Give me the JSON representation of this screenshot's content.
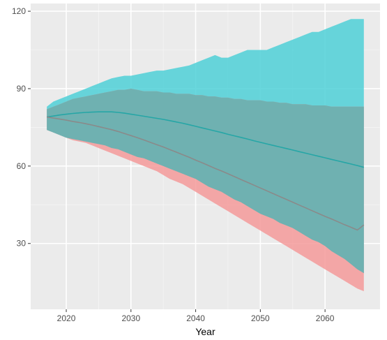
{
  "chart_data": {
    "type": "area",
    "title": "",
    "xlabel": "Year",
    "ylabel": "",
    "xlim": [
      2014.5,
      2068.5
    ],
    "ylim": [
      4.5,
      123
    ],
    "x_ticks": [
      2020,
      2030,
      2040,
      2050,
      2060
    ],
    "y_ticks": [
      30,
      60,
      90,
      120
    ],
    "grid": true,
    "legend": "none",
    "colors": {
      "panel_bg": "#ebebeb",
      "grid_major": "#ffffff",
      "grid_minor": "#f5f5f5",
      "series_a_fill": "#4fd0d7",
      "series_a_line": "#26a6a6",
      "series_b_fill": "#f59a9a",
      "series_b_line": "#8a8a8a",
      "overlap_fill": "#6fb1b1"
    },
    "series": [
      {
        "x": [
          2017,
          2018,
          2019,
          2020,
          2021,
          2022,
          2023,
          2024,
          2025,
          2026,
          2027,
          2028,
          2029,
          2030,
          2031,
          2032,
          2033,
          2034,
          2035,
          2036,
          2037,
          2038,
          2039,
          2040,
          2041,
          2042,
          2043,
          2044,
          2045,
          2046,
          2047,
          2048,
          2049,
          2050,
          2051,
          2052,
          2053,
          2054,
          2055,
          2056,
          2057,
          2058,
          2059,
          2060,
          2061,
          2062,
          2063,
          2064,
          2065,
          2066
        ],
        "mean": [
          79,
          79.4,
          79.8,
          80.1,
          80.4,
          80.6,
          80.8,
          80.9,
          81,
          81,
          81,
          80.8,
          80.5,
          80.1,
          79.7,
          79.3,
          78.9,
          78.5,
          78.1,
          77.6,
          77.1,
          76.6,
          76,
          75.4,
          74.8,
          74.2,
          73.6,
          73,
          72.3,
          71.7,
          71.1,
          70.5,
          69.8,
          69.2,
          68.6,
          68,
          67.4,
          66.8,
          66.2,
          65.6,
          65,
          64.4,
          63.8,
          63.2,
          62.6,
          62,
          61.4,
          60.8,
          60.2,
          59.5
        ],
        "lower": [
          74,
          73,
          72,
          71,
          70.5,
          70,
          69.5,
          69,
          68.5,
          68,
          67,
          66.5,
          65.5,
          64.5,
          63.5,
          63,
          62,
          61,
          60,
          59,
          58,
          57,
          56,
          55,
          53.5,
          52,
          51,
          50,
          48.5,
          47,
          46,
          44.5,
          43,
          41.5,
          40.5,
          39.5,
          38,
          37,
          36,
          34.5,
          33,
          31.5,
          30.5,
          29,
          27,
          25.5,
          24,
          22,
          20,
          18.5
        ],
        "upper": [
          83,
          85,
          86,
          87,
          88,
          89,
          90,
          91,
          92,
          93,
          94,
          94.5,
          95,
          95,
          95.5,
          96,
          96.5,
          97,
          97,
          97.5,
          98,
          98.5,
          99,
          100,
          101,
          102,
          103,
          102,
          102,
          103,
          104,
          105,
          105,
          105,
          105,
          106,
          107,
          108,
          109,
          110,
          111,
          112,
          112,
          113,
          114,
          115,
          116,
          117,
          117,
          117
        ]
      },
      {
        "x": [
          2017,
          2018,
          2019,
          2020,
          2021,
          2022,
          2023,
          2024,
          2025,
          2026,
          2027,
          2028,
          2029,
          2030,
          2031,
          2032,
          2033,
          2034,
          2035,
          2036,
          2037,
          2038,
          2039,
          2040,
          2041,
          2042,
          2043,
          2044,
          2045,
          2046,
          2047,
          2048,
          2049,
          2050,
          2051,
          2052,
          2053,
          2054,
          2055,
          2056,
          2057,
          2058,
          2059,
          2060,
          2061,
          2062,
          2063,
          2064,
          2065,
          2066
        ],
        "mean": [
          79,
          78.6,
          78.2,
          77.8,
          77.3,
          76.9,
          76.4,
          75.9,
          75.3,
          74.7,
          74.1,
          73.4,
          72.6,
          71.8,
          71,
          70.1,
          69.2,
          68.3,
          67.4,
          66.4,
          65.4,
          64.4,
          63.4,
          62.3,
          61.3,
          60.2,
          59.1,
          58.1,
          57,
          55.9,
          54.8,
          53.7,
          52.6,
          51.5,
          50.4,
          49.3,
          48.2,
          47.1,
          46,
          44.9,
          43.8,
          42.7,
          41.6,
          40.5,
          39.5,
          38.4,
          37.3,
          36.3,
          35.2,
          37.2
        ],
        "lower": [
          74,
          73,
          72,
          71,
          70,
          69.5,
          69,
          68,
          67,
          66,
          65,
          64,
          63,
          62,
          61,
          60,
          59,
          58,
          56.5,
          55,
          54,
          53,
          51.5,
          50,
          48.5,
          47,
          45.5,
          44,
          42.5,
          41,
          39.5,
          38,
          36.5,
          35,
          33.5,
          32,
          30.5,
          29,
          27.5,
          26,
          24.5,
          23,
          21.5,
          20,
          18.5,
          17,
          15.5,
          14,
          12.5,
          11.5
        ],
        "upper": [
          82,
          83,
          84,
          85,
          86,
          86.5,
          87,
          87.5,
          88,
          88.5,
          89,
          89.5,
          89.5,
          90,
          89.5,
          89,
          89,
          89,
          88.5,
          88.5,
          88,
          88,
          88,
          87.5,
          87.5,
          87,
          87,
          86.5,
          86.5,
          86,
          86,
          85.5,
          85.5,
          85.5,
          85,
          85,
          84.5,
          84.5,
          84,
          84,
          84,
          83.5,
          83.5,
          83.5,
          83,
          83,
          83,
          83,
          83,
          83
        ]
      }
    ]
  }
}
